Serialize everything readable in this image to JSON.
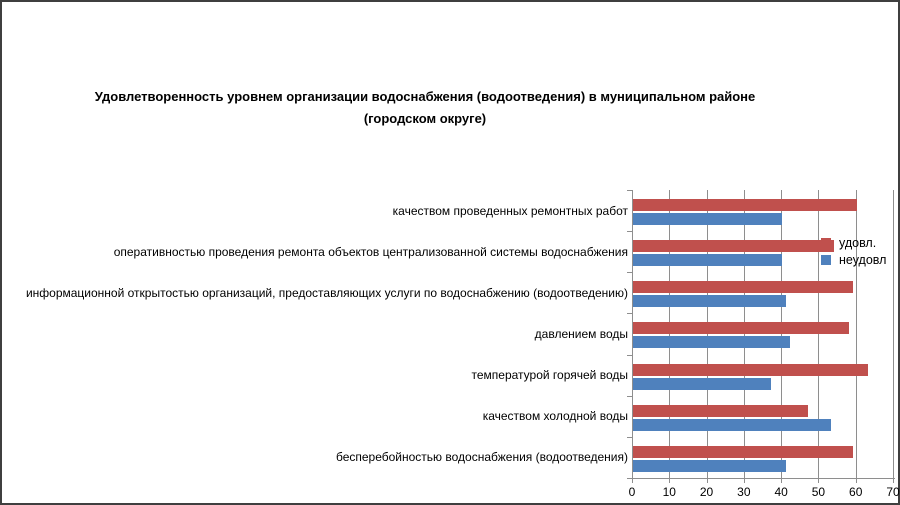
{
  "title": {
    "line1": "Удовлетворенность уровнем организации водоснабжения (водоотведения) в муниципальном районе",
    "line2": "(городском округе)"
  },
  "legend": {
    "items": [
      {
        "label": "удовл.",
        "color": "#C0504D"
      },
      {
        "label": "неудовл",
        "color": "#4F81BD"
      }
    ]
  },
  "colors": {
    "series_udovl": "#C0504D",
    "series_neudovl": "#4F81BD",
    "gridline": "#8e8e8e",
    "figure_border": "#3f3f3f"
  },
  "chart_data": {
    "type": "bar",
    "orientation": "horizontal",
    "title": "Удовлетворенность уровнем организации водоснабжения (водоотведения) в муниципальном районе (городском округе)",
    "categories": [
      "качеством проведенных ремонтных работ",
      "оперативностью проведения ремонта объектов централизованной системы водоснабжения",
      "информационной открытостью организаций, предоставляющих услуги по водоснабжению (водоотведению)",
      "давлением воды",
      "температурой горячей воды",
      "качеством холодной воды",
      "бесперебойностью водоснабжения (водоотведения)"
    ],
    "series": [
      {
        "name": "удовл.",
        "color": "#C0504D",
        "values": [
          60,
          54,
          59,
          58,
          63,
          47,
          59
        ]
      },
      {
        "name": "неудовл",
        "color": "#4F81BD",
        "values": [
          40,
          40,
          41,
          42,
          37,
          53,
          41
        ]
      }
    ],
    "xlabel": "",
    "ylabel": "",
    "xlim": [
      0,
      70
    ],
    "xticks": [
      0,
      10,
      20,
      30,
      40,
      50,
      60,
      70
    ],
    "grid": true,
    "legend_position": "right-inside-plot"
  }
}
